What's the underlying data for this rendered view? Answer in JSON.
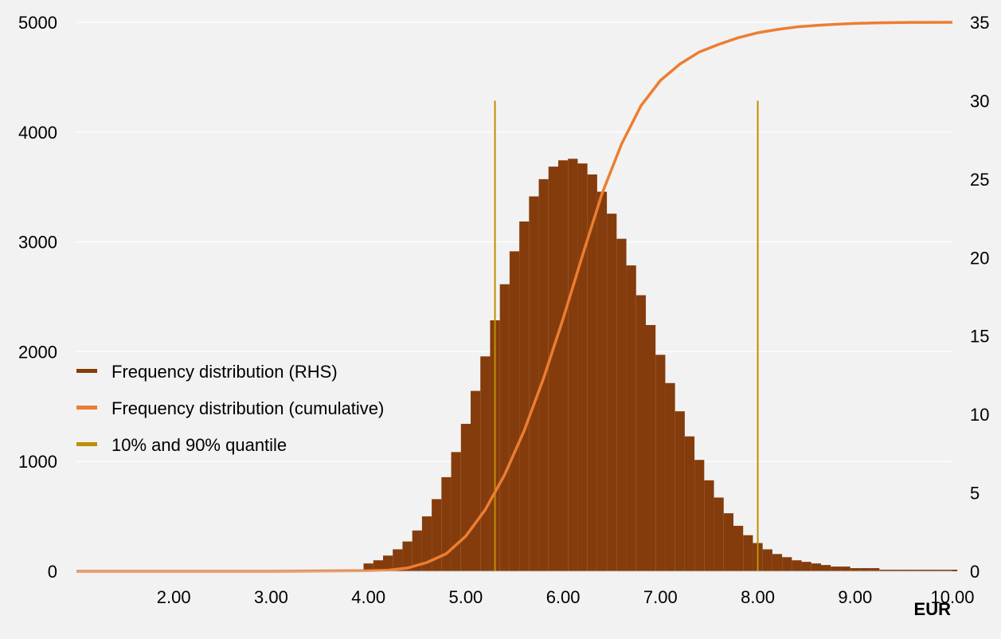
{
  "chart_data": {
    "type": "bar",
    "xlabel": "EUR",
    "x_ticks": [
      "2.00",
      "3.00",
      "4.00",
      "5.00",
      "6.00",
      "7.00",
      "8.00",
      "9.00",
      "10.00"
    ],
    "xlim": [
      1.0,
      10.0
    ],
    "y_left": {
      "ticks": [
        "0",
        "1000",
        "2000",
        "3000",
        "4000",
        "5000"
      ],
      "lim": [
        0,
        5000
      ]
    },
    "y_right": {
      "ticks": [
        "0",
        "5",
        "10",
        "15",
        "20",
        "25",
        "30",
        "35"
      ],
      "lim": [
        0,
        35
      ]
    },
    "grid": true,
    "legend_position": "middle-left",
    "series": [
      {
        "name": "Frequency distribution (RHS)",
        "axis": "right",
        "style": "histogram",
        "color": "#843c0c",
        "x": [
          4.0,
          4.1,
          4.2,
          4.3,
          4.4,
          4.5,
          4.6,
          4.7,
          4.8,
          4.9,
          5.0,
          5.1,
          5.2,
          5.3,
          5.4,
          5.5,
          5.6,
          5.7,
          5.8,
          5.9,
          6.0,
          6.1,
          6.2,
          6.3,
          6.4,
          6.5,
          6.6,
          6.7,
          6.8,
          6.9,
          7.0,
          7.1,
          7.2,
          7.3,
          7.4,
          7.5,
          7.6,
          7.7,
          7.8,
          7.9,
          8.0,
          8.1,
          8.2,
          8.3,
          8.4,
          8.5,
          8.6,
          8.7,
          8.8,
          8.9,
          9.0,
          9.1,
          9.2,
          9.3,
          9.4,
          9.5,
          9.6,
          9.7,
          9.8,
          9.9,
          10.0
        ],
        "values": [
          0.5,
          0.7,
          1.0,
          1.4,
          1.9,
          2.6,
          3.5,
          4.6,
          6.0,
          7.6,
          9.4,
          11.5,
          13.7,
          16.0,
          18.3,
          20.4,
          22.3,
          23.9,
          25.0,
          25.8,
          26.2,
          26.3,
          26.0,
          25.3,
          24.2,
          22.8,
          21.2,
          19.5,
          17.6,
          15.7,
          13.8,
          12.0,
          10.2,
          8.6,
          7.1,
          5.8,
          4.7,
          3.7,
          2.9,
          2.3,
          1.8,
          1.4,
          1.1,
          0.9,
          0.7,
          0.6,
          0.5,
          0.4,
          0.3,
          0.3,
          0.2,
          0.2,
          0.2,
          0.1,
          0.1,
          0.1,
          0.1,
          0.1,
          0.1,
          0.1,
          0.1
        ]
      },
      {
        "name": "Frequency distribution (cumulative)",
        "axis": "left",
        "style": "line",
        "color": "#ed7d31",
        "x": [
          1.0,
          2.0,
          3.0,
          4.0,
          4.2,
          4.4,
          4.6,
          4.8,
          5.0,
          5.2,
          5.4,
          5.6,
          5.8,
          6.0,
          6.2,
          6.4,
          6.6,
          6.8,
          7.0,
          7.2,
          7.4,
          7.6,
          7.8,
          8.0,
          8.2,
          8.4,
          8.6,
          8.8,
          9.0,
          9.2,
          9.4,
          9.6,
          10.0
        ],
        "values": [
          0,
          0,
          0,
          5,
          10,
          30,
          80,
          160,
          320,
          560,
          880,
          1280,
          1760,
          2300,
          2880,
          3440,
          3890,
          4240,
          4470,
          4620,
          4730,
          4800,
          4860,
          4905,
          4935,
          4958,
          4972,
          4982,
          4990,
          4994,
          4997,
          4999,
          5000
        ]
      },
      {
        "name": "10% and 90% quantile",
        "axis": "right",
        "style": "vline",
        "color": "#bf9000",
        "x": [
          5.3,
          8.0
        ],
        "values": [
          30,
          30
        ]
      }
    ]
  }
}
